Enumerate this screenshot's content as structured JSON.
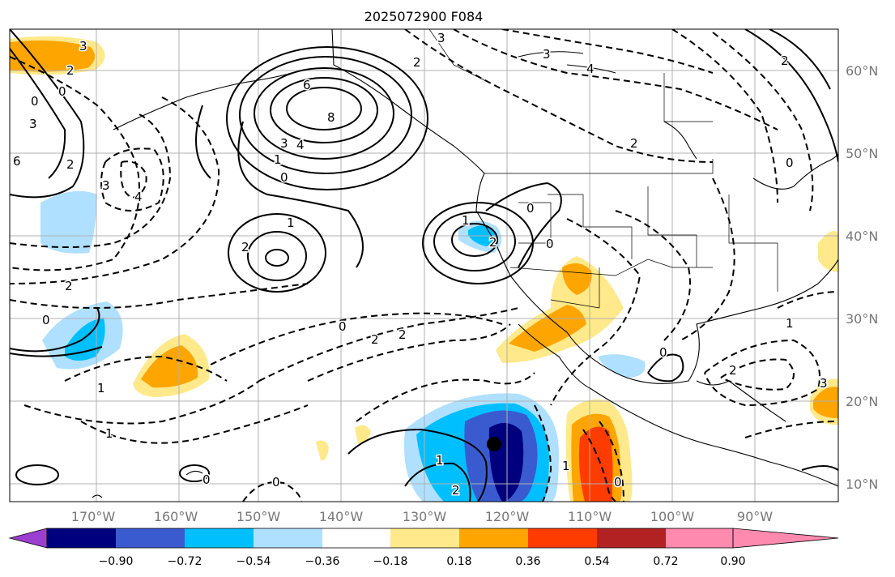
{
  "title": "2025072900 F084",
  "lat_labels": [
    "60°N",
    "50°N",
    "40°N",
    "30°N",
    "20°N",
    "10°N"
  ],
  "lon_labels": [
    "170°W",
    "160°W",
    "150°W",
    "140°W",
    "130°W",
    "120°W",
    "110°W",
    "100°W",
    "90°W"
  ],
  "colorbar": {
    "tick_labels": [
      "−0.90",
      "−0.72",
      "−0.54",
      "−0.36",
      "−0.18",
      "0.18",
      "0.36",
      "0.54",
      "0.72",
      "0.90"
    ],
    "colors": [
      "#9b3fd1",
      "#00007f",
      "#3a5bd0",
      "#00bfff",
      "#b0e0ff",
      "#ffffff",
      "#ffe98a",
      "#ffa500",
      "#ff3c00",
      "#b22222",
      "#ff8ab0"
    ]
  },
  "contour_labels": {
    "l_3a": "3",
    "l_2a": "2",
    "l_0a": "0",
    "l_0b": "0",
    "l_3b": "3",
    "l_6": "6",
    "l_2b": "2",
    "l_3c": "3",
    "l_4a": "4",
    "l_6b": "6",
    "l_8": "8",
    "l_3d": "3",
    "l_4b": "4",
    "l_1a": "1",
    "l_0c": "0",
    "l_1b": "1",
    "l_2c": "2",
    "l_2d": "2",
    "l_0d": "0",
    "l_0e": "0",
    "l_2e": "2",
    "l_2f": "2",
    "l_1c": "1",
    "l_1d": "1",
    "l_1e": "1",
    "l_0f": "0",
    "l_0g": "0",
    "l_2g": "2",
    "l_1f": "1",
    "l_2h": "2",
    "l_0h": "0",
    "l_0i": "0",
    "l_1g": "1",
    "l_3e": "3",
    "l_2i": "2",
    "l_2j": "2",
    "l_1h": "1",
    "l_3f": "3",
    "l_0j": "0",
    "l_4c": "4",
    "l_2k": "2"
  },
  "marker": "storm-center"
}
